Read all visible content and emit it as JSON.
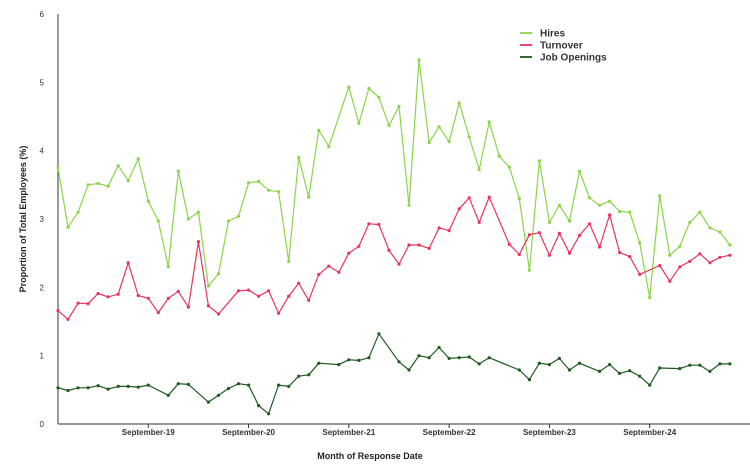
{
  "chart_data": {
    "type": "line",
    "xlabel": "Month of Response Date",
    "ylabel": "Proportion of Total Employees (%)",
    "ylim": [
      0,
      6
    ],
    "yticks": [
      "0",
      "1",
      "2",
      "3",
      "4",
      "5",
      "6"
    ],
    "xlim": [
      0,
      69
    ],
    "xticks": [
      {
        "label": "September-19",
        "x": 9
      },
      {
        "label": "September-20",
        "x": 19
      },
      {
        "label": "September-21",
        "x": 29
      },
      {
        "label": "September-22",
        "x": 39
      },
      {
        "label": "September-23",
        "x": 49
      },
      {
        "label": "September-24",
        "x": 59
      }
    ],
    "grid": false,
    "legend_position": "top-right",
    "series": [
      {
        "name": "Hires",
        "color": "#8cd44a",
        "points": [
          [
            0,
            3.75
          ],
          [
            1,
            2.88
          ],
          [
            2,
            3.1
          ],
          [
            3,
            3.5
          ],
          [
            4,
            3.52
          ],
          [
            5,
            3.48
          ],
          [
            6,
            3.78
          ],
          [
            7,
            3.56
          ],
          [
            8,
            3.88
          ],
          [
            9,
            3.26
          ],
          [
            10,
            2.97
          ],
          [
            11,
            2.3
          ],
          [
            12,
            3.7
          ],
          [
            13,
            3.0
          ],
          [
            14,
            3.1
          ],
          [
            15,
            2.02
          ],
          [
            16,
            2.2
          ],
          [
            17,
            2.97
          ],
          [
            18,
            3.04
          ],
          [
            19,
            3.53
          ],
          [
            20,
            3.55
          ],
          [
            21,
            3.42
          ],
          [
            22,
            3.4
          ],
          [
            23,
            2.38
          ],
          [
            24,
            3.9
          ],
          [
            25,
            3.32
          ],
          [
            26,
            4.3
          ],
          [
            27,
            4.06
          ],
          [
            29,
            4.93
          ],
          [
            30,
            4.4
          ],
          [
            31,
            4.91
          ],
          [
            32,
            4.78
          ],
          [
            33,
            4.37
          ],
          [
            34,
            4.65
          ],
          [
            35,
            3.2
          ],
          [
            36,
            5.33
          ],
          [
            37,
            4.12
          ],
          [
            38,
            4.35
          ],
          [
            39,
            4.13
          ],
          [
            40,
            4.7
          ],
          [
            41,
            4.2
          ],
          [
            42,
            3.72
          ],
          [
            43,
            4.42
          ],
          [
            44,
            3.92
          ],
          [
            45,
            3.76
          ],
          [
            46,
            3.3
          ],
          [
            47,
            2.25
          ],
          [
            48,
            3.85
          ],
          [
            49,
            2.95
          ],
          [
            50,
            3.2
          ],
          [
            51,
            2.97
          ],
          [
            52,
            3.7
          ],
          [
            53,
            3.31
          ],
          [
            54,
            3.2
          ],
          [
            55,
            3.26
          ],
          [
            56,
            3.11
          ],
          [
            57,
            3.1
          ],
          [
            58,
            2.65
          ],
          [
            59,
            1.85
          ],
          [
            60,
            3.34
          ],
          [
            61,
            2.47
          ],
          [
            62,
            2.6
          ],
          [
            63,
            2.95
          ],
          [
            64,
            3.1
          ],
          [
            65,
            2.87
          ],
          [
            66,
            2.81
          ],
          [
            67,
            2.62
          ]
        ]
      },
      {
        "name": "Turnover",
        "color": "#e8355f",
        "points": [
          [
            0,
            1.66
          ],
          [
            1,
            1.53
          ],
          [
            2,
            1.77
          ],
          [
            3,
            1.76
          ],
          [
            4,
            1.91
          ],
          [
            5,
            1.86
          ],
          [
            6,
            1.9
          ],
          [
            7,
            2.36
          ],
          [
            8,
            1.88
          ],
          [
            9,
            1.84
          ],
          [
            10,
            1.63
          ],
          [
            11,
            1.84
          ],
          [
            12,
            1.94
          ],
          [
            13,
            1.71
          ],
          [
            14,
            2.67
          ],
          [
            15,
            1.73
          ],
          [
            16,
            1.61
          ],
          [
            18,
            1.95
          ],
          [
            19,
            1.96
          ],
          [
            20,
            1.87
          ],
          [
            21,
            1.95
          ],
          [
            22,
            1.62
          ],
          [
            23,
            1.87
          ],
          [
            24,
            2.06
          ],
          [
            25,
            1.81
          ],
          [
            26,
            2.19
          ],
          [
            27,
            2.31
          ],
          [
            28,
            2.22
          ],
          [
            29,
            2.5
          ],
          [
            30,
            2.6
          ],
          [
            31,
            2.93
          ],
          [
            32,
            2.92
          ],
          [
            33,
            2.54
          ],
          [
            34,
            2.34
          ],
          [
            35,
            2.62
          ],
          [
            36,
            2.62
          ],
          [
            37,
            2.57
          ],
          [
            38,
            2.87
          ],
          [
            39,
            2.83
          ],
          [
            40,
            3.15
          ],
          [
            41,
            3.31
          ],
          [
            42,
            2.95
          ],
          [
            43,
            3.32
          ],
          [
            45,
            2.63
          ],
          [
            46,
            2.48
          ],
          [
            47,
            2.77
          ],
          [
            48,
            2.8
          ],
          [
            49,
            2.47
          ],
          [
            50,
            2.79
          ],
          [
            51,
            2.5
          ],
          [
            52,
            2.76
          ],
          [
            53,
            2.93
          ],
          [
            54,
            2.59
          ],
          [
            55,
            3.06
          ],
          [
            56,
            2.51
          ],
          [
            57,
            2.45
          ],
          [
            58,
            2.19
          ],
          [
            60,
            2.32
          ],
          [
            61,
            2.09
          ],
          [
            62,
            2.3
          ],
          [
            63,
            2.38
          ],
          [
            64,
            2.49
          ],
          [
            65,
            2.36
          ],
          [
            66,
            2.44
          ],
          [
            67,
            2.47
          ]
        ]
      },
      {
        "name": "Job Openings",
        "color": "#1f5a1f",
        "points": [
          [
            0,
            0.53
          ],
          [
            1,
            0.49
          ],
          [
            2,
            0.53
          ],
          [
            3,
            0.53
          ],
          [
            4,
            0.56
          ],
          [
            5,
            0.51
          ],
          [
            6,
            0.55
          ],
          [
            7,
            0.55
          ],
          [
            8,
            0.54
          ],
          [
            9,
            0.57
          ],
          [
            11,
            0.42
          ],
          [
            12,
            0.59
          ],
          [
            13,
            0.58
          ],
          [
            15,
            0.32
          ],
          [
            16,
            0.42
          ],
          [
            17,
            0.52
          ],
          [
            18,
            0.59
          ],
          [
            19,
            0.57
          ],
          [
            20,
            0.27
          ],
          [
            21,
            0.15
          ],
          [
            22,
            0.57
          ],
          [
            23,
            0.55
          ],
          [
            24,
            0.7
          ],
          [
            25,
            0.72
          ],
          [
            26,
            0.89
          ],
          [
            28,
            0.87
          ],
          [
            29,
            0.94
          ],
          [
            30,
            0.93
          ],
          [
            31,
            0.97
          ],
          [
            32,
            1.32
          ],
          [
            34,
            0.91
          ],
          [
            35,
            0.79
          ],
          [
            36,
            1.0
          ],
          [
            37,
            0.97
          ],
          [
            38,
            1.12
          ],
          [
            39,
            0.96
          ],
          [
            40,
            0.97
          ],
          [
            41,
            0.98
          ],
          [
            42,
            0.88
          ],
          [
            43,
            0.97
          ],
          [
            46,
            0.79
          ],
          [
            47,
            0.65
          ],
          [
            48,
            0.89
          ],
          [
            49,
            0.87
          ],
          [
            50,
            0.96
          ],
          [
            51,
            0.79
          ],
          [
            52,
            0.89
          ],
          [
            54,
            0.77
          ],
          [
            55,
            0.87
          ],
          [
            56,
            0.74
          ],
          [
            57,
            0.78
          ],
          [
            58,
            0.7
          ],
          [
            59,
            0.57
          ],
          [
            60,
            0.82
          ],
          [
            62,
            0.81
          ],
          [
            63,
            0.86
          ],
          [
            64,
            0.86
          ],
          [
            65,
            0.77
          ],
          [
            66,
            0.88
          ],
          [
            67,
            0.88
          ]
        ]
      }
    ]
  }
}
